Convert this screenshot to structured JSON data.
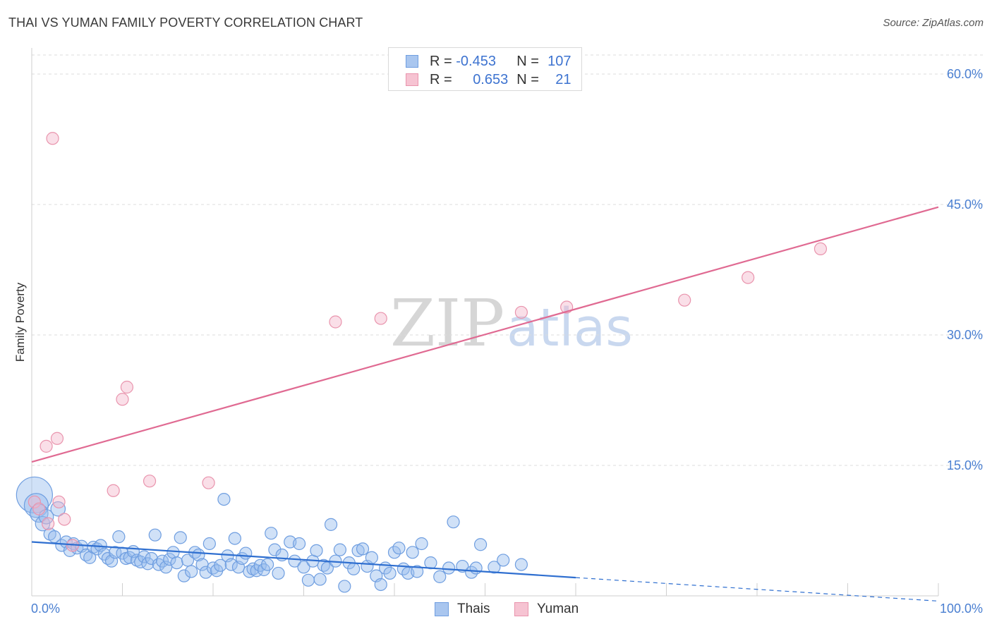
{
  "title": "THAI VS YUMAN FAMILY POVERTY CORRELATION CHART",
  "source": "Source: ZipAtlas.com",
  "watermark": {
    "zip": "ZIP",
    "atlas": "atlas"
  },
  "legend_top": {
    "rows": [
      {
        "r_label": "R = ",
        "r_value": "-0.453",
        "n_label": "N = ",
        "n_value": "107",
        "color": "#a9c6ef",
        "border": "#6f9ee0"
      },
      {
        "r_label": "R = ",
        "r_value": "0.653",
        "n_label": "N = ",
        "n_value": "21",
        "color": "#f6c3d2",
        "border": "#e994ad"
      }
    ]
  },
  "legend_bottom": [
    {
      "label": "Thais",
      "color": "#a9c6ef",
      "border": "#6f9ee0"
    },
    {
      "label": "Yuman",
      "color": "#f6c3d2",
      "border": "#e994ad"
    }
  ],
  "chart_data": {
    "type": "scatter",
    "title": "THAI VS YUMAN FAMILY POVERTY CORRELATION CHART",
    "xlabel": "",
    "ylabel": "Family Poverty",
    "xlim": [
      0,
      100
    ],
    "ylim": [
      0,
      63
    ],
    "x_tick_labels": [
      "0.0%",
      "100.0%"
    ],
    "y_ticks": [
      15,
      30,
      45,
      60
    ],
    "y_tick_labels": [
      "15.0%",
      "30.0%",
      "45.0%",
      "60.0%"
    ],
    "grid": true,
    "legend_position": "top-center",
    "colors": {
      "Thais": "#6f9ee0",
      "Yuman": "#e994ad",
      "thais_line": "#2f6fd0",
      "yuman_line": "#e06a92"
    },
    "series": [
      {
        "name": "Thais",
        "points": [
          [
            0.3,
            11.6,
            3
          ],
          [
            0.5,
            10.4,
            2
          ],
          [
            0.8,
            9.5,
            1.5
          ],
          [
            1.2,
            8.3,
            1.2
          ],
          [
            1.6,
            9.1,
            1.2
          ],
          [
            2.0,
            7.1,
            1
          ],
          [
            2.5,
            6.8,
            1
          ],
          [
            2.9,
            10.0,
            1.2
          ],
          [
            3.3,
            5.8,
            1
          ],
          [
            3.8,
            6.2,
            1
          ],
          [
            4.2,
            5.2,
            1
          ],
          [
            4.6,
            6.0,
            1
          ],
          [
            5.0,
            5.5,
            1
          ],
          [
            5.5,
            5.7,
            1
          ],
          [
            6.0,
            4.7,
            1
          ],
          [
            6.4,
            4.4,
            1
          ],
          [
            6.8,
            5.6,
            1
          ],
          [
            7.2,
            5.4,
            1
          ],
          [
            7.6,
            5.8,
            1
          ],
          [
            8.0,
            4.8,
            1
          ],
          [
            8.4,
            4.3,
            1
          ],
          [
            8.8,
            4.0,
            1
          ],
          [
            9.2,
            5.0,
            1
          ],
          [
            9.6,
            6.8,
            1
          ],
          [
            10.0,
            4.9,
            1
          ],
          [
            10.4,
            4.3,
            1
          ],
          [
            10.8,
            4.4,
            1
          ],
          [
            11.2,
            5.1,
            1
          ],
          [
            11.6,
            4.1,
            1
          ],
          [
            12.0,
            3.9,
            1
          ],
          [
            12.4,
            4.5,
            1
          ],
          [
            12.8,
            3.7,
            1
          ],
          [
            13.2,
            4.3,
            1
          ],
          [
            13.6,
            7.0,
            1
          ],
          [
            14.0,
            3.6,
            1
          ],
          [
            14.4,
            4.0,
            1
          ],
          [
            14.8,
            3.3,
            1
          ],
          [
            15.2,
            4.2,
            1
          ],
          [
            15.6,
            5.0,
            1
          ],
          [
            16.0,
            3.8,
            1
          ],
          [
            16.4,
            6.7,
            1
          ],
          [
            16.8,
            2.3,
            1
          ],
          [
            17.2,
            4.1,
            1
          ],
          [
            17.6,
            2.8,
            1
          ],
          [
            18.0,
            5.0,
            1
          ],
          [
            18.4,
            4.7,
            1
          ],
          [
            18.8,
            3.6,
            1
          ],
          [
            19.2,
            2.7,
            1
          ],
          [
            19.6,
            6.0,
            1
          ],
          [
            20.0,
            3.2,
            1
          ],
          [
            20.4,
            2.9,
            1
          ],
          [
            20.8,
            3.5,
            1
          ],
          [
            21.2,
            11.1,
            1
          ],
          [
            21.6,
            4.6,
            1
          ],
          [
            22.0,
            3.6,
            1
          ],
          [
            22.4,
            6.6,
            1
          ],
          [
            22.8,
            3.3,
            1
          ],
          [
            23.2,
            4.3,
            1
          ],
          [
            23.6,
            4.9,
            1
          ],
          [
            24.0,
            2.8,
            1
          ],
          [
            24.4,
            3.1,
            1
          ],
          [
            24.8,
            2.9,
            1
          ],
          [
            25.2,
            3.5,
            1
          ],
          [
            25.6,
            3.0,
            1
          ],
          [
            26.0,
            3.6,
            1
          ],
          [
            26.4,
            7.2,
            1
          ],
          [
            26.8,
            5.3,
            1
          ],
          [
            27.2,
            2.6,
            1
          ],
          [
            27.6,
            4.7,
            1
          ],
          [
            28.5,
            6.2,
            1
          ],
          [
            29.0,
            4.0,
            1
          ],
          [
            29.5,
            6.0,
            1
          ],
          [
            30.0,
            3.3,
            1
          ],
          [
            30.5,
            1.8,
            1
          ],
          [
            31.0,
            4.0,
            1
          ],
          [
            31.4,
            5.2,
            1
          ],
          [
            31.8,
            1.9,
            1
          ],
          [
            32.2,
            3.5,
            1
          ],
          [
            32.6,
            3.2,
            1
          ],
          [
            33.0,
            8.2,
            1
          ],
          [
            33.5,
            4.0,
            1
          ],
          [
            34.0,
            5.3,
            1
          ],
          [
            34.5,
            1.1,
            1
          ],
          [
            35.0,
            3.8,
            1
          ],
          [
            35.5,
            3.1,
            1
          ],
          [
            36.0,
            5.2,
            1
          ],
          [
            36.5,
            5.4,
            1
          ],
          [
            37.0,
            3.4,
            1
          ],
          [
            37.5,
            4.4,
            1
          ],
          [
            38.0,
            2.3,
            1
          ],
          [
            38.5,
            1.3,
            1
          ],
          [
            39.0,
            3.2,
            1
          ],
          [
            39.5,
            2.6,
            1
          ],
          [
            40.0,
            5.0,
            1
          ],
          [
            40.5,
            5.5,
            1
          ],
          [
            41.0,
            3.1,
            1
          ],
          [
            41.5,
            2.6,
            1
          ],
          [
            42.0,
            5.0,
            1
          ],
          [
            42.5,
            2.8,
            1
          ],
          [
            43.0,
            6.0,
            1
          ],
          [
            44.0,
            3.8,
            1
          ],
          [
            45.0,
            2.2,
            1
          ],
          [
            46.0,
            3.2,
            1
          ],
          [
            46.5,
            8.5,
            1
          ],
          [
            47.5,
            3.4,
            1
          ],
          [
            48.5,
            2.7,
            1
          ],
          [
            49.0,
            3.2,
            1
          ],
          [
            49.5,
            5.9,
            1
          ],
          [
            51.0,
            3.3,
            1
          ],
          [
            52.0,
            4.1,
            1
          ],
          [
            54.0,
            3.6,
            1
          ]
        ]
      },
      {
        "name": "Yuman",
        "points": [
          [
            0.3,
            10.8,
            1
          ],
          [
            0.8,
            10.0,
            1
          ],
          [
            1.6,
            17.2,
            1
          ],
          [
            1.8,
            8.3,
            1
          ],
          [
            2.3,
            52.6,
            1
          ],
          [
            2.8,
            18.1,
            1
          ],
          [
            3.0,
            10.8,
            1
          ],
          [
            3.6,
            8.8,
            1
          ],
          [
            4.5,
            5.8,
            1
          ],
          [
            9.0,
            12.1,
            1
          ],
          [
            10.0,
            22.6,
            1
          ],
          [
            10.5,
            24.0,
            1
          ],
          [
            13.0,
            13.2,
            1
          ],
          [
            19.5,
            13.0,
            1
          ],
          [
            33.5,
            31.5,
            1
          ],
          [
            38.5,
            31.9,
            1
          ],
          [
            54.0,
            32.6,
            1
          ],
          [
            59.0,
            33.2,
            1
          ],
          [
            72.0,
            34.0,
            1
          ],
          [
            79.0,
            36.6,
            1
          ],
          [
            87.0,
            39.9,
            1
          ]
        ]
      }
    ],
    "trendlines": [
      {
        "series": "Thais",
        "solid": [
          [
            0,
            6.2
          ],
          [
            60,
            2.1
          ]
        ],
        "dashed": [
          [
            60,
            2.1
          ],
          [
            100,
            -0.6
          ]
        ]
      },
      {
        "series": "Yuman",
        "solid": [
          [
            0,
            15.4
          ],
          [
            100,
            44.7
          ]
        ]
      }
    ]
  }
}
